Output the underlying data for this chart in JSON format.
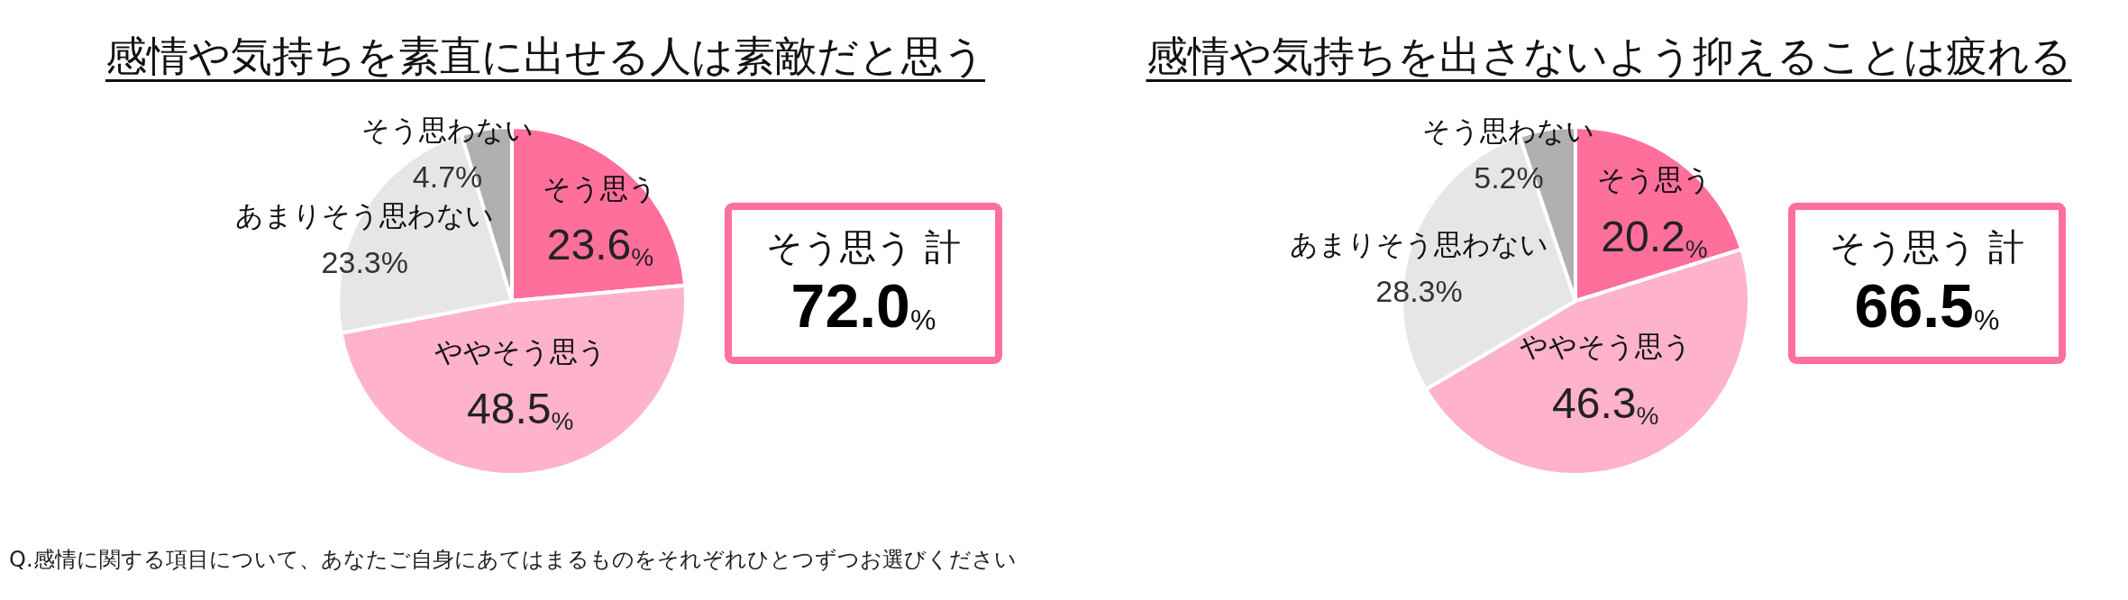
{
  "chart_data": [
    {
      "type": "pie",
      "title": "感情や気持ちを素直に出せる人は素敵だと思う",
      "categories": [
        "そう思う",
        "ややそう思う",
        "あまりそう思わない",
        "そう思わない"
      ],
      "values": [
        23.6,
        48.5,
        23.3,
        4.7
      ],
      "colors": [
        "#ff6f9c",
        "#ffb3cb",
        "#e6e6e6",
        "#b0b0b0"
      ],
      "value_labels": [
        "23.6%",
        "48.5%",
        "23.3%",
        "4.7%"
      ],
      "annotations": [
        "そう思う 計",
        "72.0%",
        "Q.感情に関する項目について、あなたご自身にあてはまるものをそれぞれひとつずつお選びください"
      ]
    },
    {
      "type": "pie",
      "title": "感情や気持ちを出さないよう抑えることは疲れる",
      "categories": [
        "そう思う",
        "ややそう思う",
        "あまりそう思わない",
        "そう思わない"
      ],
      "values": [
        20.2,
        46.3,
        28.3,
        5.2
      ],
      "colors": [
        "#ff6f9c",
        "#ffb3cb",
        "#e6e6e6",
        "#b0b0b0"
      ],
      "value_labels": [
        "20.2%",
        "46.3%",
        "28.3%",
        "5.2%"
      ],
      "annotations": [
        "そう思う 計",
        "66.5%"
      ]
    }
  ]
}
